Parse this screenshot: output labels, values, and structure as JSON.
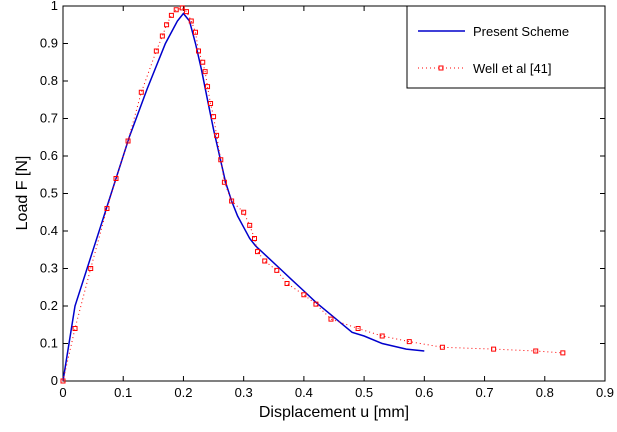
{
  "chart_data": {
    "type": "line",
    "title": "",
    "xlabel": "Displacement u [mm]",
    "ylabel": "Load F [N]",
    "xlim": [
      0,
      0.9
    ],
    "ylim": [
      0,
      1
    ],
    "xticks": [
      "0",
      "0.1",
      "0.2",
      "0.3",
      "0.4",
      "0.5",
      "0.6",
      "0.7",
      "0.8",
      "0.9"
    ],
    "yticks": [
      "0",
      "0.1",
      "0.2",
      "0.3",
      "0.4",
      "0.5",
      "0.6",
      "0.7",
      "0.8",
      "0.9",
      "1"
    ],
    "grid": false,
    "legend_position": "top-right",
    "series": [
      {
        "name": "Present Scheme",
        "style": "solid-line",
        "color": "#0000cc",
        "x": [
          0,
          0.02,
          0.05,
          0.08,
          0.11,
          0.14,
          0.17,
          0.19,
          0.2,
          0.21,
          0.22,
          0.23,
          0.24,
          0.25,
          0.26,
          0.27,
          0.28,
          0.29,
          0.3,
          0.31,
          0.32,
          0.34,
          0.36,
          0.38,
          0.4,
          0.42,
          0.45,
          0.48,
          0.5,
          0.53,
          0.57,
          0.6
        ],
        "y": [
          0,
          0.2,
          0.35,
          0.5,
          0.65,
          0.78,
          0.9,
          0.96,
          0.98,
          0.96,
          0.9,
          0.83,
          0.75,
          0.67,
          0.6,
          0.53,
          0.48,
          0.44,
          0.41,
          0.38,
          0.36,
          0.33,
          0.3,
          0.27,
          0.24,
          0.21,
          0.17,
          0.13,
          0.12,
          0.1,
          0.085,
          0.08
        ]
      },
      {
        "name": "Well et al [41]",
        "style": "dotted-square-markers",
        "color": "#ff0000",
        "x": [
          0,
          0.02,
          0.046,
          0.073,
          0.088,
          0.108,
          0.13,
          0.155,
          0.165,
          0.172,
          0.18,
          0.188,
          0.198,
          0.205,
          0.213,
          0.22,
          0.225,
          0.232,
          0.236,
          0.24,
          0.245,
          0.25,
          0.255,
          0.262,
          0.268,
          0.28,
          0.3,
          0.31,
          0.318,
          0.323,
          0.335,
          0.355,
          0.372,
          0.4,
          0.42,
          0.445,
          0.49,
          0.53,
          0.575,
          0.63,
          0.715,
          0.785,
          0.83
        ],
        "y": [
          0,
          0.14,
          0.3,
          0.46,
          0.54,
          0.64,
          0.77,
          0.88,
          0.92,
          0.95,
          0.975,
          0.99,
          0.995,
          0.985,
          0.96,
          0.93,
          0.88,
          0.85,
          0.825,
          0.785,
          0.74,
          0.705,
          0.655,
          0.59,
          0.53,
          0.48,
          0.45,
          0.415,
          0.38,
          0.345,
          0.32,
          0.295,
          0.26,
          0.23,
          0.205,
          0.165,
          0.14,
          0.12,
          0.105,
          0.09,
          0.085,
          0.08,
          0.075
        ]
      }
    ]
  }
}
